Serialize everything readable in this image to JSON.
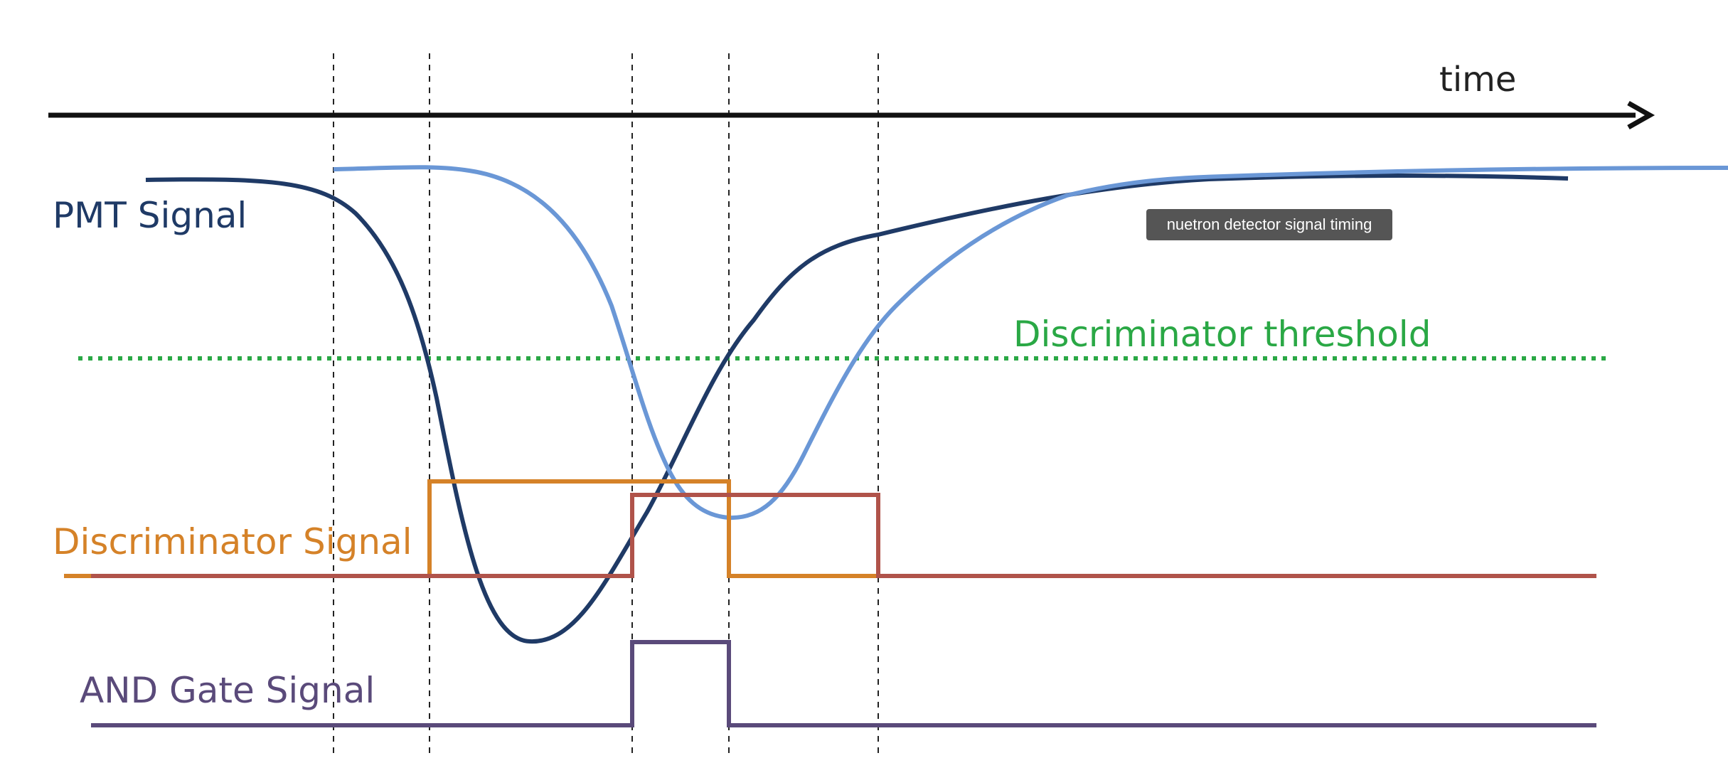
{
  "diagram": {
    "time_label": "time",
    "pmt_label": "PMT Signal",
    "threshold_label": "Discriminator threshold",
    "discriminator_label": "Discriminator Signal",
    "and_label": "AND Gate Signal",
    "tooltip": "nuetron detector signal timing"
  },
  "colors": {
    "axis": "#111111",
    "pmt_signal_1": "#1f3a66",
    "pmt_signal_2": "#6a97d6",
    "threshold": "#2aa845",
    "discriminator_1": "#d58228",
    "discriminator_2": "#b0534a",
    "and_gate": "#5a4a7a",
    "guide_lines": "#222222",
    "text": "#222222"
  }
}
